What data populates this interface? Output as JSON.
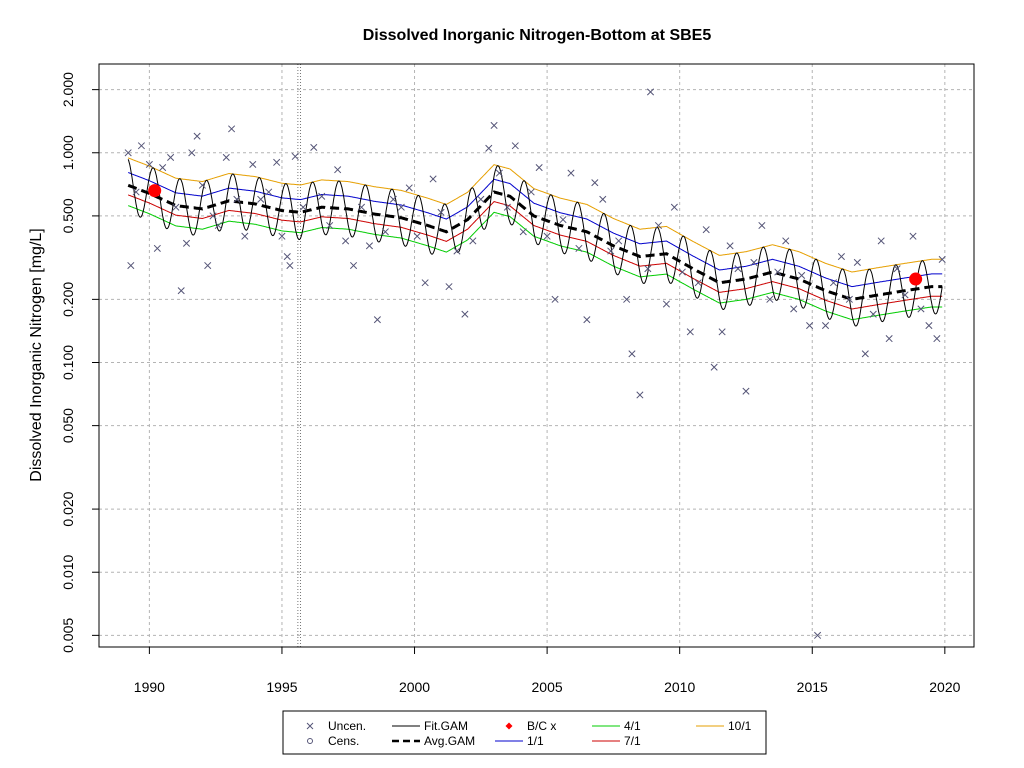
{
  "chart_data": {
    "type": "scatter",
    "title": "Dissolved Inorganic Nitrogen-Bottom at SBE5",
    "xlabel": "",
    "ylabel": "Dissolved Inorganic Nitrogen [mg/L]",
    "y_scale": "log",
    "xlim": [
      1988.1,
      2021.1
    ],
    "ylim": [
      0.0044,
      2.65
    ],
    "x_ticks": [
      1990,
      1995,
      2000,
      2005,
      2010,
      2015,
      2020
    ],
    "x_tick_labels": [
      "1990",
      "1995",
      "2000",
      "2005",
      "2010",
      "2015",
      "2020"
    ],
    "y_ticks": [
      0.005,
      0.01,
      0.02,
      0.05,
      0.1,
      0.2,
      0.5,
      1,
      2
    ],
    "y_tick_labels": [
      "0.005",
      "0.010",
      "0.020",
      "0.050",
      "0.100",
      "0.200",
      "0.500",
      "1.000",
      "2.000"
    ],
    "grid": true,
    "vertical_marker_x": [
      1995.6,
      1995.7
    ],
    "legend_position": "bottom",
    "legend": [
      {
        "label": "Uncen.",
        "symbol": "x",
        "color": "#555577"
      },
      {
        "label": "Cens.",
        "symbol": "circle-open",
        "color": "#555577"
      },
      {
        "label": "Fit.GAM",
        "symbol": "line",
        "color": "#000000"
      },
      {
        "label": "Avg.GAM",
        "symbol": "dashed-line",
        "color": "#000000"
      },
      {
        "label": "B/C x",
        "symbol": "diamond",
        "color": "#ff0000"
      },
      {
        "label": "1/1",
        "symbol": "line",
        "color": "#0000cc"
      },
      {
        "label": "4/1",
        "symbol": "line",
        "color": "#00cc00"
      },
      {
        "label": "7/1",
        "symbol": "line",
        "color": "#cc0000"
      },
      {
        "label": "10/1",
        "symbol": "line",
        "color": "#e69f00"
      }
    ],
    "series_colors": {
      "fit": "#000000",
      "avg": "#000000",
      "s1_1": "#0000cc",
      "s4_1": "#00cc00",
      "s7_1": "#cc0000",
      "s10_1": "#e69f00",
      "points": "#555577",
      "bc": "#ff0000"
    },
    "trend": {
      "x": [
        1989.2,
        1990.0,
        1991.0,
        1992.0,
        1993.0,
        1994.0,
        1995.0,
        1995.7,
        1996.5,
        1997.5,
        1998.5,
        1999.5,
        2000.5,
        2001.2,
        2002.0,
        2003.0,
        2003.6,
        2004.5,
        2005.5,
        2006.5,
        2007.5,
        2008.5,
        2009.5,
        2010.5,
        2011.5,
        2012.5,
        2013.5,
        2014.5,
        2015.5,
        2016.5,
        2017.5,
        2018.5,
        2019.5,
        2019.9
      ],
      "avg": [
        0.7,
        0.64,
        0.56,
        0.54,
        0.59,
        0.57,
        0.53,
        0.52,
        0.55,
        0.54,
        0.51,
        0.49,
        0.45,
        0.42,
        0.48,
        0.65,
        0.62,
        0.5,
        0.45,
        0.42,
        0.36,
        0.32,
        0.33,
        0.28,
        0.24,
        0.25,
        0.27,
        0.25,
        0.22,
        0.2,
        0.21,
        0.22,
        0.23,
        0.23
      ]
    },
    "series_ratios": {
      "s1_1": 1.15,
      "s4_1": 0.8,
      "s7_1": 0.9,
      "s10_1": 1.35
    },
    "fit_seasonal_amplitude": 0.3,
    "bc_points": [
      {
        "x": 1990.2,
        "y": 0.66
      },
      {
        "x": 2018.9,
        "y": 0.25
      }
    ],
    "uncensored": {
      "x": [
        1989.2,
        1989.3,
        1989.5,
        1989.7,
        1990.0,
        1990.3,
        1990.5,
        1990.8,
        1991.0,
        1991.2,
        1991.4,
        1991.6,
        1991.8,
        1992.0,
        1992.2,
        1992.4,
        1992.6,
        1992.9,
        1993.1,
        1993.3,
        1993.6,
        1993.9,
        1994.2,
        1994.5,
        1994.8,
        1995.0,
        1995.2,
        1995.3,
        1995.5,
        1995.8,
        1996.2,
        1996.5,
        1996.8,
        1997.1,
        1997.4,
        1997.7,
        1998.0,
        1998.3,
        1998.6,
        1998.9,
        1999.2,
        1999.5,
        1999.8,
        2000.1,
        2000.4,
        2000.7,
        2001.0,
        2001.3,
        2001.6,
        2001.9,
        2002.2,
        2002.5,
        2002.8,
        2003.0,
        2003.2,
        2003.5,
        2003.8,
        2004.1,
        2004.4,
        2004.7,
        2005.0,
        2005.3,
        2005.6,
        2005.9,
        2006.2,
        2006.5,
        2006.8,
        2007.1,
        2007.4,
        2007.7,
        2008.0,
        2008.2,
        2008.5,
        2008.8,
        2008.9,
        2009.2,
        2009.5,
        2009.8,
        2010.1,
        2010.4,
        2010.7,
        2011.0,
        2011.3,
        2011.6,
        2011.9,
        2012.2,
        2012.5,
        2012.8,
        2013.1,
        2013.4,
        2013.7,
        2014.0,
        2014.3,
        2014.6,
        2014.9,
        2015.2,
        2015.5,
        2015.8,
        2016.1,
        2016.4,
        2016.7,
        2017.0,
        2017.3,
        2017.6,
        2017.9,
        2018.2,
        2018.5,
        2018.8,
        2019.1,
        2019.4,
        2019.7,
        2019.9
      ],
      "y": [
        1.0,
        0.29,
        0.65,
        1.08,
        0.88,
        0.35,
        0.85,
        0.95,
        0.55,
        0.22,
        0.37,
        1.0,
        1.2,
        0.7,
        0.29,
        0.5,
        0.45,
        0.95,
        1.3,
        0.6,
        0.4,
        0.88,
        0.6,
        0.65,
        0.9,
        0.4,
        0.32,
        0.29,
        0.96,
        0.55,
        1.06,
        0.62,
        0.45,
        0.83,
        0.38,
        0.29,
        0.55,
        0.36,
        0.16,
        0.42,
        0.6,
        0.55,
        0.68,
        0.4,
        0.24,
        0.75,
        0.52,
        0.23,
        0.34,
        0.17,
        0.38,
        0.6,
        1.05,
        1.35,
        0.8,
        0.55,
        1.08,
        0.42,
        0.65,
        0.85,
        0.4,
        0.2,
        0.48,
        0.8,
        0.35,
        0.16,
        0.72,
        0.6,
        0.34,
        0.38,
        0.2,
        0.11,
        0.07,
        0.28,
        1.95,
        0.45,
        0.19,
        0.55,
        0.27,
        0.14,
        0.24,
        0.43,
        0.095,
        0.14,
        0.36,
        0.28,
        0.073,
        0.3,
        0.45,
        0.2,
        0.27,
        0.38,
        0.18,
        0.26,
        0.15,
        0.005,
        0.15,
        0.24,
        0.32,
        0.2,
        0.3,
        0.11,
        0.17,
        0.38,
        0.13,
        0.28,
        0.21,
        0.4,
        0.18,
        0.15,
        0.13,
        0.31
      ]
    }
  }
}
